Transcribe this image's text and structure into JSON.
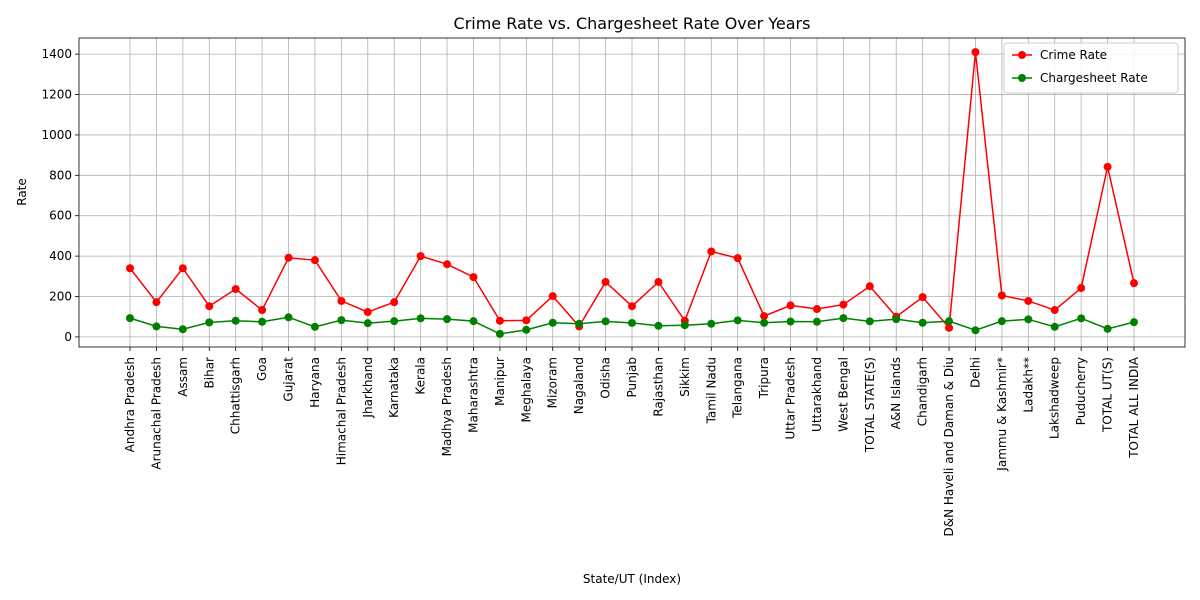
{
  "chart_data": {
    "type": "line",
    "title": "Crime Rate vs. Chargesheet Rate Over Years",
    "xlabel": "State/UT (Index)",
    "ylabel": "Rate",
    "ylim": [
      -50,
      1480
    ],
    "yticks": [
      0,
      200,
      400,
      600,
      800,
      1000,
      1200,
      1400
    ],
    "grid": true,
    "legend_position": "top-right",
    "categories": [
      "Andhra Pradesh",
      "Arunachal Pradesh",
      "Assam",
      "Bihar",
      "Chhattisgarh",
      "Goa",
      "Gujarat",
      "Haryana",
      "Himachal Pradesh",
      "Jharkhand",
      "Karnataka",
      "Kerala",
      "Madhya Pradesh",
      "Maharashtra",
      "Manipur",
      "Meghalaya",
      "Mizoram",
      "Nagaland",
      "Odisha",
      "Punjab",
      "Rajasthan",
      "Sikkim",
      "Tamil Nadu",
      "Telangana",
      "Tripura",
      "Uttar Pradesh",
      "Uttarakhand",
      "West Bengal",
      "TOTAL STATE(S)",
      "A&N Islands",
      "Chandigarh",
      "D&N Haveli and Daman & Diu",
      "Delhi",
      "Jammu & Kashmir*",
      "Ladakh**",
      "Lakshadweep",
      "Puducherry",
      "TOTAL UT(S)",
      "TOTAL ALL INDIA"
    ],
    "series": [
      {
        "name": "Crime Rate",
        "color": "#ff0000",
        "values": [
          340,
          172,
          340,
          152,
          237,
          133,
          392,
          380,
          178,
          123,
          172,
          400,
          360,
          296,
          80,
          82,
          202,
          52,
          272,
          152,
          272,
          80,
          423,
          390,
          103,
          156,
          138,
          160,
          251,
          100,
          197,
          45,
          1410,
          205,
          178,
          133,
          242,
          842,
          266
        ]
      },
      {
        "name": "Chargesheet Rate",
        "color": "#008000",
        "values": [
          93,
          52,
          38,
          72,
          80,
          75,
          97,
          50,
          83,
          68,
          78,
          92,
          88,
          78,
          15,
          35,
          70,
          65,
          77,
          69,
          55,
          58,
          65,
          82,
          70,
          76,
          75,
          93,
          77,
          88,
          70,
          78,
          33,
          78,
          87,
          50,
          92,
          40,
          73
        ]
      }
    ]
  }
}
